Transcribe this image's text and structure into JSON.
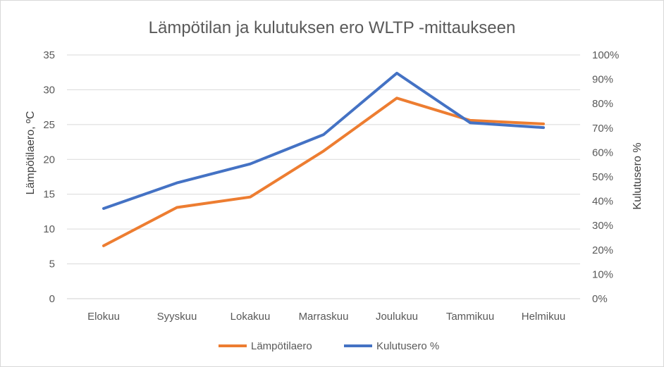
{
  "chart_data": {
    "type": "line",
    "title": "Lämpötilan ja kulutuksen ero WLTP -mittaukseen",
    "categories": [
      "Elokuu",
      "Syyskuu",
      "Lokakuu",
      "Marraskuu",
      "Joulukuu",
      "Tammikuu",
      "Helmikuu"
    ],
    "series": [
      {
        "name": "Lämpötilaero",
        "axis": "left",
        "color": "#ED7D31",
        "values": [
          7.6,
          13.1,
          14.6,
          21.2,
          28.8,
          25.6,
          25.1
        ]
      },
      {
        "name": "Kulutusero %",
        "axis": "right",
        "color": "#4472C4",
        "values": [
          0.37,
          0.475,
          0.553,
          0.673,
          0.925,
          0.722,
          0.702
        ]
      }
    ],
    "ylabel_left": "Lämpötilaero, ºC",
    "ylabel_right": "Kulutusero %",
    "ylim_left": [
      0,
      35
    ],
    "ylim_right": [
      0,
      1
    ],
    "yticks_left": [
      "0",
      "5",
      "10",
      "15",
      "20",
      "25",
      "30",
      "35"
    ],
    "yticks_right": [
      "0%",
      "10%",
      "20%",
      "30%",
      "40%",
      "50%",
      "60%",
      "70%",
      "80%",
      "90%",
      "100%"
    ],
    "grid": true,
    "legend_position": "bottom"
  }
}
